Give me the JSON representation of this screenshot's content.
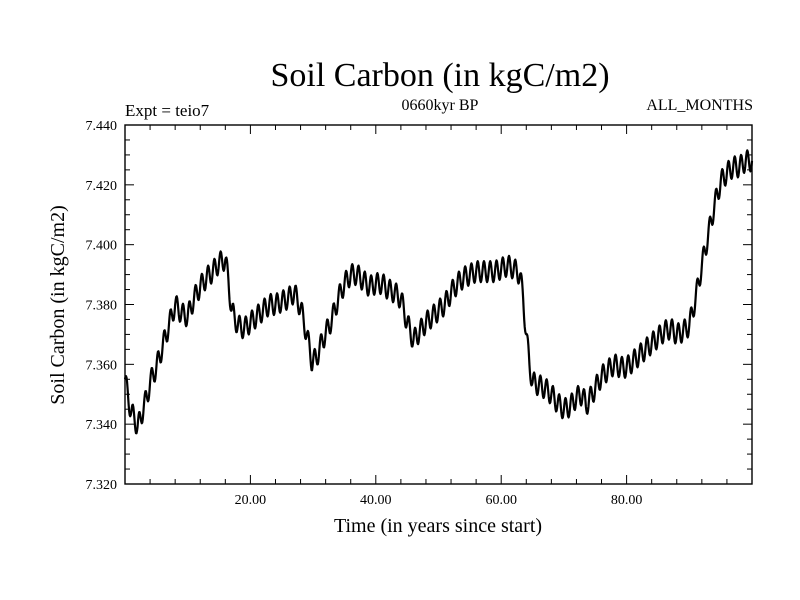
{
  "chart_data": {
    "type": "line",
    "title": "Soil Carbon (in kgC/m2)",
    "subtitle": "0660kyr BP",
    "left_label": "Expt = teio7",
    "right_label": "ALL_MONTHS",
    "xlabel": "Time (in years since start)",
    "ylabel": "Soil Carbon (in kgC/m2)",
    "xlim": [
      0,
      100
    ],
    "ylim": [
      7.32,
      7.44
    ],
    "x_ticks": [
      20,
      40,
      60,
      80
    ],
    "x_tick_labels": [
      "20.00",
      "40.00",
      "60.00",
      "80.00"
    ],
    "y_ticks": [
      7.32,
      7.34,
      7.36,
      7.38,
      7.4,
      7.42,
      7.44
    ],
    "y_tick_labels": [
      "7.320",
      "7.340",
      "7.360",
      "7.380",
      "7.400",
      "7.420",
      "7.440"
    ],
    "grid": false,
    "legend": "none",
    "seasonal_amplitude": 0.0035,
    "series": [
      {
        "name": "Soil Carbon",
        "x": [
          0,
          0.5,
          1,
          1.5,
          2,
          2.5,
          3,
          3.5,
          4,
          5,
          6,
          7,
          8,
          9,
          10,
          11,
          12,
          13,
          14,
          15,
          16,
          16.5,
          17,
          18,
          19,
          20,
          21,
          22,
          23,
          24,
          25,
          26,
          27,
          28,
          29,
          29.8,
          30.5,
          31.5,
          33,
          34,
          35,
          36,
          37,
          38,
          39,
          40,
          41,
          42,
          43,
          44,
          45,
          46,
          47,
          48,
          49,
          50,
          51,
          52,
          53,
          54,
          55,
          56,
          57,
          58,
          59,
          60,
          61,
          62,
          63,
          63.5,
          64,
          64.5,
          65,
          66,
          67,
          68,
          69,
          70,
          71,
          72,
          73,
          73.5,
          74,
          75,
          76,
          77,
          78,
          79,
          80,
          81,
          82,
          83,
          84,
          85,
          86,
          87,
          88,
          89,
          90,
          91,
          92,
          93,
          94,
          95,
          96,
          97,
          98,
          99,
          100
        ],
        "values": [
          7.355,
          7.349,
          7.344,
          7.342,
          7.339,
          7.342,
          7.346,
          7.349,
          7.354,
          7.359,
          7.366,
          7.373,
          7.38,
          7.377,
          7.376,
          7.382,
          7.386,
          7.389,
          7.391,
          7.394,
          7.395,
          7.388,
          7.378,
          7.373,
          7.372,
          7.374,
          7.376,
          7.378,
          7.38,
          7.38,
          7.381,
          7.382,
          7.384,
          7.379,
          7.37,
          7.361,
          7.362,
          7.368,
          7.375,
          7.382,
          7.387,
          7.39,
          7.39,
          7.388,
          7.386,
          7.387,
          7.387,
          7.385,
          7.384,
          7.382,
          7.374,
          7.368,
          7.371,
          7.374,
          7.376,
          7.378,
          7.38,
          7.384,
          7.387,
          7.389,
          7.39,
          7.391,
          7.391,
          7.391,
          7.391,
          7.392,
          7.393,
          7.392,
          7.39,
          7.382,
          7.37,
          7.36,
          7.354,
          7.353,
          7.352,
          7.35,
          7.347,
          7.345,
          7.346,
          7.349,
          7.35,
          7.346,
          7.348,
          7.352,
          7.356,
          7.358,
          7.36,
          7.359,
          7.359,
          7.361,
          7.363,
          7.365,
          7.367,
          7.369,
          7.371,
          7.372,
          7.37,
          7.371,
          7.373,
          7.382,
          7.393,
          7.403,
          7.413,
          7.421,
          7.424,
          7.426,
          7.426,
          7.428,
          7.428
        ]
      }
    ]
  }
}
